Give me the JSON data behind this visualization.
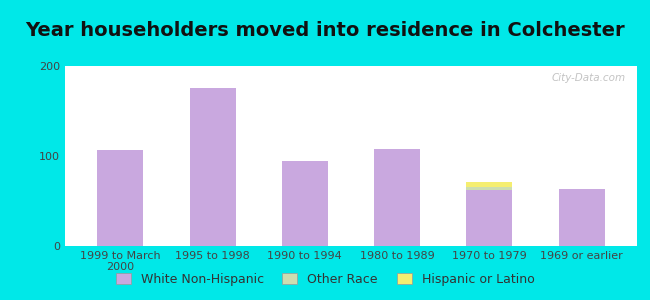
{
  "title": "Year householders moved into residence in Colchester",
  "categories": [
    "1999 to March\n2000",
    "1995 to 1998",
    "1990 to 1994",
    "1980 to 1989",
    "1970 to 1979",
    "1969 or earlier"
  ],
  "series": {
    "White Non-Hispanic": [
      107,
      176,
      95,
      108,
      62,
      63
    ],
    "Other Race": [
      0,
      0,
      0,
      0,
      4,
      0
    ],
    "Hispanic or Latino": [
      0,
      0,
      0,
      0,
      5,
      0
    ]
  },
  "colors": {
    "White Non-Hispanic": "#c9a8df",
    "Other Race": "#ccddb0",
    "Hispanic or Latino": "#f5ee70"
  },
  "ylim": [
    0,
    200
  ],
  "yticks": [
    0,
    100,
    200
  ],
  "bar_width": 0.5,
  "background_outer": "#00e8e8",
  "watermark": "City-Data.com",
  "title_fontsize": 14,
  "legend_fontsize": 9,
  "tick_fontsize": 8
}
